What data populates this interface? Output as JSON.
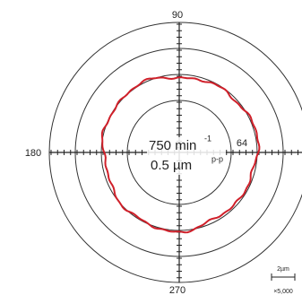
{
  "axis_labels": {
    "top": "90",
    "left": "180",
    "bottom": "270",
    "right": "64"
  },
  "center": {
    "speed": "750 min",
    "speed_sup": "-1",
    "range": "0.5 µm",
    "range_sup": "p-p"
  },
  "scale": {
    "length": "2µm",
    "magnification": "×5,000"
  }
}
